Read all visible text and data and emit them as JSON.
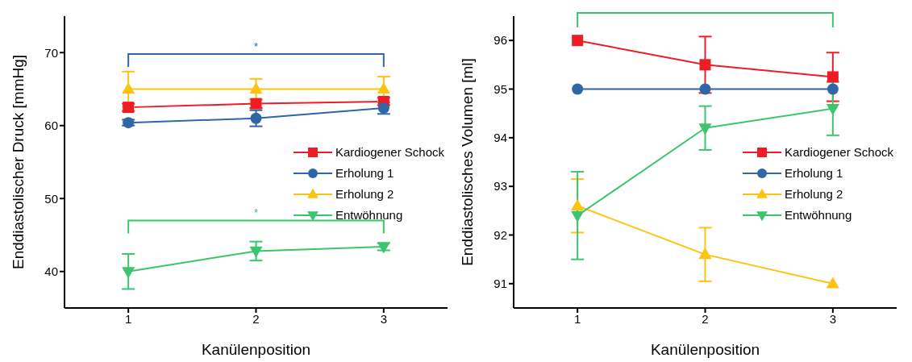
{
  "chart_data": [
    {
      "type": "line",
      "xlabel": "Kanülenposition",
      "ylabel": "Enddiastolischer Druck [mmHg]",
      "x": [
        1,
        2,
        3
      ],
      "xlim": [
        0.5,
        3.5
      ],
      "xticks": [
        1,
        2,
        3
      ],
      "ylim": [
        35,
        75
      ],
      "yticks": [
        40,
        50,
        60,
        70
      ],
      "legend": "right",
      "series": [
        {
          "name": "Kardiogener Schock",
          "color": "#ee1c25",
          "marker": "square",
          "values": [
            62.5,
            63.0,
            63.3
          ],
          "errors": [
            0.5,
            0.6,
            0.5
          ]
        },
        {
          "name": "Erholung 1",
          "color": "#2f67a6",
          "marker": "circle",
          "values": [
            60.4,
            61.0,
            62.4
          ],
          "errors": [
            0.4,
            1.1,
            0.8
          ]
        },
        {
          "name": "Erholung 2",
          "color": "#ffc20e",
          "marker": "triangle",
          "values": [
            65,
            65,
            65
          ],
          "errors": [
            2.4,
            1.4,
            1.7
          ]
        },
        {
          "name": "Entwöhnung",
          "color": "#3cc46e",
          "marker": "triangle-down",
          "values": [
            40.0,
            42.8,
            43.4
          ],
          "errors": [
            2.4,
            1.3,
            0.5
          ]
        }
      ],
      "annotations": [
        "*",
        "*"
      ]
    },
    {
      "type": "line",
      "xlabel": "Kanülenposition",
      "ylabel": "Enddiastolisches Volumen [ml]",
      "x": [
        1,
        2,
        3
      ],
      "xlim": [
        0.5,
        3.5
      ],
      "xticks": [
        1,
        2,
        3
      ],
      "ylim": [
        90.5,
        96.5
      ],
      "yticks": [
        91,
        92,
        93,
        94,
        95,
        96
      ],
      "legend": "right",
      "series": [
        {
          "name": "Kardiogener Schock",
          "color": "#ee1c25",
          "marker": "square",
          "values": [
            96,
            95.5,
            95.25
          ],
          "errors": [
            null,
            0.58,
            0.5
          ]
        },
        {
          "name": "Erholung 1",
          "color": "#2f67a6",
          "marker": "circle",
          "values": [
            95,
            95,
            95
          ]
        },
        {
          "name": "Erholung 2",
          "color": "#ffc20e",
          "marker": "triangle",
          "values": [
            92.6,
            91.6,
            91.0
          ],
          "errors": [
            0.55,
            0.55,
            null
          ]
        },
        {
          "name": "Entwöhnung",
          "color": "#3cc46e",
          "marker": "triangle-down",
          "values": [
            92.4,
            94.2,
            94.6
          ],
          "errors": [
            0.9,
            0.45,
            0.55
          ]
        }
      ]
    }
  ]
}
